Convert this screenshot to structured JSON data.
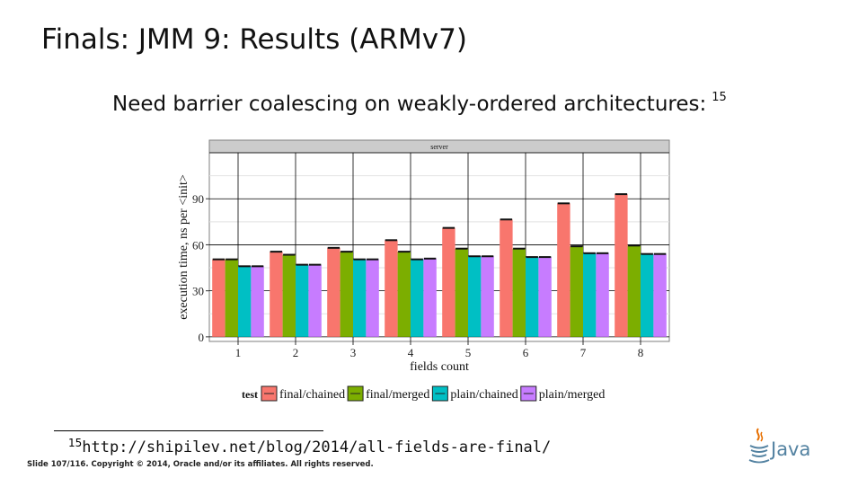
{
  "slide": {
    "title": "Finals: JMM 9: Results (ARMv7)",
    "subtitle": "Need barrier coalescing on weakly-ordered architectures:",
    "subtitle_footnote_mark": "15",
    "footnote_mark": "15",
    "footnote_url": "http://shipilev.net/blog/2014/all-fields-are-final/",
    "footer": "Slide 107/116. Copyright © 2014, Oracle and/or its affiliates. All rights reserved.",
    "logo_text": "Java"
  },
  "chart_data": {
    "type": "bar",
    "panel_label": "server",
    "xlabel": "fields count",
    "ylabel": "execution time, ns per <init>",
    "legend_title": "test",
    "legend_position": "bottom",
    "grid": true,
    "ylim": [
      -3,
      120
    ],
    "yticks": [
      0,
      30,
      60,
      90
    ],
    "categories": [
      "1",
      "2",
      "3",
      "4",
      "5",
      "6",
      "7",
      "8"
    ],
    "series": [
      {
        "name": "final/chained",
        "color": "#f8766d",
        "values": [
          50.5,
          55.5,
          58.0,
          63.0,
          71.0,
          76.5,
          87.0,
          93.0
        ]
      },
      {
        "name": "final/merged",
        "color": "#7cae00",
        "values": [
          50.5,
          53.5,
          55.5,
          55.5,
          57.5,
          57.5,
          59.0,
          59.5
        ]
      },
      {
        "name": "plain/chained",
        "color": "#00bfc4",
        "values": [
          46.0,
          47.0,
          50.5,
          50.5,
          52.5,
          52.0,
          54.5,
          54.0
        ]
      },
      {
        "name": "plain/merged",
        "color": "#c77cff",
        "values": [
          46.0,
          47.0,
          50.5,
          51.0,
          52.5,
          52.0,
          54.5,
          54.0
        ]
      }
    ]
  }
}
